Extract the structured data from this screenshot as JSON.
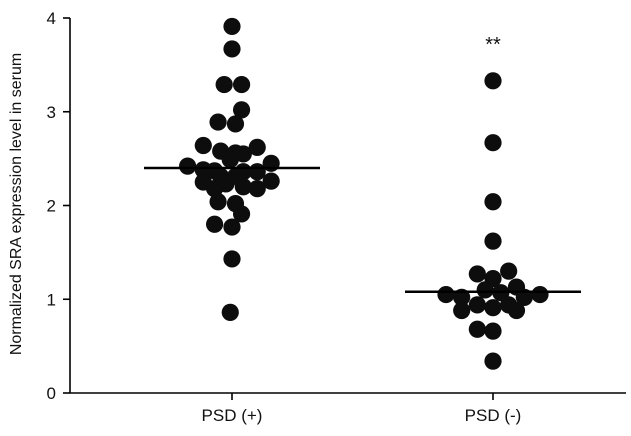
{
  "chart_data": {
    "type": "scatter",
    "title": "",
    "xlabel": "",
    "ylabel": "Normalized SRA expression level in serum",
    "ylim": [
      0,
      4
    ],
    "yticks": [
      0,
      1,
      2,
      3,
      4
    ],
    "grid": false,
    "categories": [
      "PSD (+)",
      "PSD (-)"
    ],
    "annotations": [
      {
        "text": "**",
        "category": "PSD (-)",
        "y": 3.8
      }
    ],
    "groups": [
      {
        "category": "PSD (+)",
        "median": 2.4,
        "points": [
          {
            "offset": 0.0,
            "y": 3.91
          },
          {
            "offset": 0.0,
            "y": 3.67
          },
          {
            "offset": -0.09,
            "y": 3.29
          },
          {
            "offset": 0.11,
            "y": 3.29
          },
          {
            "offset": 0.11,
            "y": 3.02
          },
          {
            "offset": -0.16,
            "y": 2.89
          },
          {
            "offset": 0.04,
            "y": 2.87
          },
          {
            "offset": -0.33,
            "y": 2.64
          },
          {
            "offset": 0.29,
            "y": 2.62
          },
          {
            "offset": -0.13,
            "y": 2.58
          },
          {
            "offset": 0.04,
            "y": 2.56
          },
          {
            "offset": 0.13,
            "y": 2.55
          },
          {
            "offset": -0.02,
            "y": 2.49
          },
          {
            "offset": -0.51,
            "y": 2.42
          },
          {
            "offset": 0.45,
            "y": 2.45
          },
          {
            "offset": -0.33,
            "y": 2.38
          },
          {
            "offset": -0.2,
            "y": 2.37
          },
          {
            "offset": 0.13,
            "y": 2.36
          },
          {
            "offset": 0.29,
            "y": 2.36
          },
          {
            "offset": -0.13,
            "y": 2.31
          },
          {
            "offset": 0.04,
            "y": 2.31
          },
          {
            "offset": -0.33,
            "y": 2.25
          },
          {
            "offset": 0.45,
            "y": 2.26
          },
          {
            "offset": -0.07,
            "y": 2.23
          },
          {
            "offset": -0.2,
            "y": 2.18
          },
          {
            "offset": 0.13,
            "y": 2.2
          },
          {
            "offset": 0.29,
            "y": 2.18
          },
          {
            "offset": -0.16,
            "y": 2.04
          },
          {
            "offset": 0.04,
            "y": 2.02
          },
          {
            "offset": 0.11,
            "y": 1.91
          },
          {
            "offset": -0.2,
            "y": 1.8
          },
          {
            "offset": 0.0,
            "y": 1.77
          },
          {
            "offset": 0.0,
            "y": 1.43
          },
          {
            "offset": -0.02,
            "y": 0.86
          }
        ]
      },
      {
        "category": "PSD (-)",
        "median": 1.08,
        "points": [
          {
            "offset": 0.0,
            "y": 3.33
          },
          {
            "offset": 0.0,
            "y": 2.67
          },
          {
            "offset": 0.0,
            "y": 2.04
          },
          {
            "offset": 0.0,
            "y": 1.62
          },
          {
            "offset": 0.18,
            "y": 1.3
          },
          {
            "offset": -0.18,
            "y": 1.27
          },
          {
            "offset": 0.0,
            "y": 1.22
          },
          {
            "offset": 0.27,
            "y": 1.13
          },
          {
            "offset": -0.09,
            "y": 1.1
          },
          {
            "offset": 0.09,
            "y": 1.07
          },
          {
            "offset": -0.54,
            "y": 1.05
          },
          {
            "offset": 0.54,
            "y": 1.05
          },
          {
            "offset": -0.36,
            "y": 1.02
          },
          {
            "offset": 0.36,
            "y": 1.02
          },
          {
            "offset": -0.18,
            "y": 0.94
          },
          {
            "offset": 0.18,
            "y": 0.94
          },
          {
            "offset": 0.0,
            "y": 0.91
          },
          {
            "offset": -0.36,
            "y": 0.88
          },
          {
            "offset": 0.27,
            "y": 0.88
          },
          {
            "offset": -0.18,
            "y": 0.68
          },
          {
            "offset": 0.0,
            "y": 0.66
          },
          {
            "offset": 0.0,
            "y": 0.34
          }
        ]
      }
    ],
    "colors": {
      "dots": "#0d0d0d",
      "axis": "#000000"
    }
  }
}
